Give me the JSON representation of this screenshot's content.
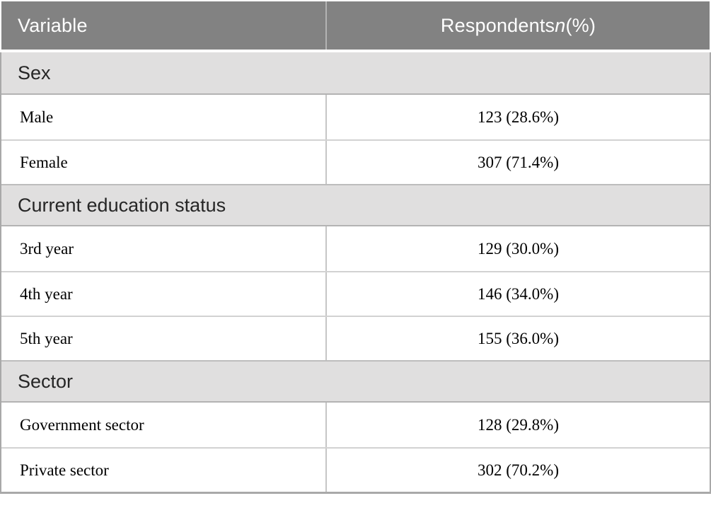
{
  "table": {
    "header": {
      "variable": "Variable",
      "respondents_prefix": "Respondents ",
      "respondents_n": "n",
      "respondents_suffix": " (%)"
    },
    "sections": [
      {
        "title": "Sex",
        "rows": [
          {
            "label": "Male",
            "value": "123 (28.6%)"
          },
          {
            "label": "Female",
            "value": "307 (71.4%)"
          }
        ]
      },
      {
        "title": "Current education status",
        "rows": [
          {
            "label": "3rd year",
            "value": "129 (30.0%)"
          },
          {
            "label": "4th year",
            "value": "146 (34.0%)"
          },
          {
            "label": "5th year",
            "value": "155 (36.0%)"
          }
        ]
      },
      {
        "title": "Sector",
        "rows": [
          {
            "label": "Government sector",
            "value": "128 (29.8%)"
          },
          {
            "label": "Private sector",
            "value": "302 (70.2%)"
          }
        ]
      }
    ],
    "colors": {
      "header_bg": "#828282",
      "header_text": "#ffffff",
      "section_bg": "#e0dfdf",
      "section_text": "#262626",
      "data_text": "#000000",
      "outer_border": "#a9a9a9",
      "cell_border": "#c6c6c6"
    }
  }
}
